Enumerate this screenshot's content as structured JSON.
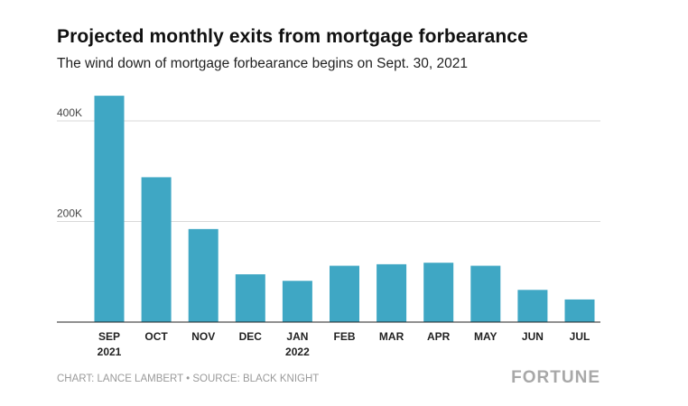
{
  "title": "Projected monthly exits from mortgage forbearance",
  "subtitle": "The wind down of mortgage forbearance begins on Sept. 30, 2021",
  "footer": {
    "source": "CHART: LANCE LAMBERT • SOURCE: BLACK KNIGHT",
    "brand": "FORTUNE"
  },
  "chart_data": {
    "type": "bar",
    "categories": [
      "SEP\n2021",
      "OCT",
      "NOV",
      "DEC",
      "JAN\n2022",
      "FEB",
      "MAR",
      "APR",
      "MAY",
      "JUN",
      "JUL"
    ],
    "values": [
      450000,
      288000,
      185000,
      95000,
      82000,
      112000,
      115000,
      118000,
      112000,
      64000,
      45000
    ],
    "yticks": [
      200000,
      400000
    ],
    "ytick_labels": [
      "200K",
      "400K"
    ],
    "ylim": [
      0,
      450000
    ],
    "bar_color": "#3fa7c4",
    "grid": true
  }
}
